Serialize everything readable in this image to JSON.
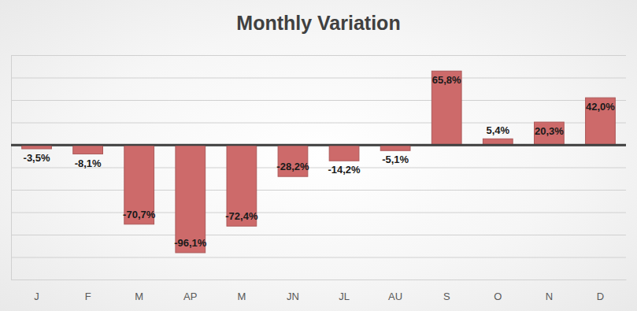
{
  "chart_data": {
    "type": "bar",
    "title": "Monthly Variation",
    "categories": [
      "J",
      "F",
      "M",
      "AP",
      "M",
      "JN",
      "JL",
      "AU",
      "S",
      "O",
      "N",
      "D"
    ],
    "values": [
      -3.5,
      -8.1,
      -70.7,
      -96.1,
      -72.4,
      -28.2,
      -14.2,
      -5.1,
      65.8,
      5.4,
      20.3,
      42.0
    ],
    "value_labels": [
      "-3,5%",
      "-8,1%",
      "-70,7%",
      "-96,1%",
      "-72,4%",
      "-28,2%",
      "-14,2%",
      "-5,1%",
      "65,8%",
      "5,4%",
      "20,3%",
      "42,0%"
    ],
    "color": "#cd6a6a",
    "ylim": [
      -120,
      80
    ],
    "yticks": [
      -120,
      -100,
      -80,
      -60,
      -40,
      -20,
      0,
      20,
      40,
      60,
      80
    ],
    "grid": true,
    "data_labels": true,
    "tick_labels": "x"
  }
}
